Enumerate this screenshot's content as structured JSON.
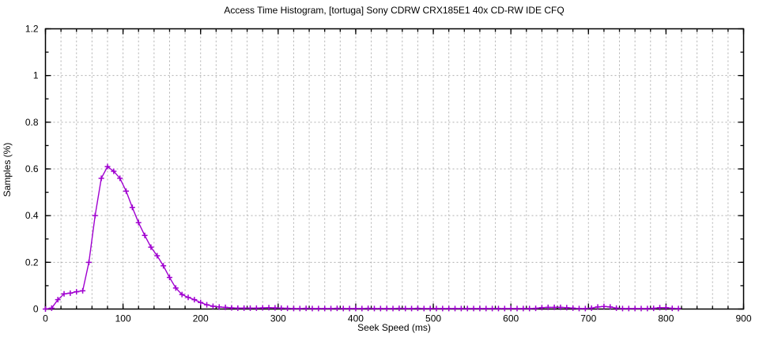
{
  "window": {
    "background_color": "#ffffff"
  },
  "chart_data": {
    "type": "line",
    "title": "Access Time Histogram, [tortuga] Sony CDRW CRX185E1 40x CD-RW IDE CFQ",
    "xlabel": "Seek Speed (ms)",
    "ylabel": "Samples (%)",
    "xlim": [
      0,
      900
    ],
    "ylim": [
      0,
      1.2
    ],
    "grid": "on",
    "grid_style": "dashed",
    "legend_position": "none",
    "grid_color": "#b0b0b0",
    "axis_color": "#000000",
    "xticks": {
      "values": [
        0,
        100,
        200,
        300,
        400,
        500,
        600,
        700,
        800,
        900
      ],
      "labels": [
        "0",
        "100",
        "200",
        "300",
        "400",
        "500",
        "600",
        "700",
        "800",
        "900"
      ],
      "minor_step": 20
    },
    "yticks": {
      "values": [
        0,
        0.2,
        0.4,
        0.6,
        0.8,
        1.0,
        1.2
      ],
      "labels": [
        "0",
        "0.2",
        "0.4",
        "0.6",
        "0.8",
        "1",
        "1.2"
      ],
      "minor_step": 0.1
    },
    "series": [
      {
        "name": "access-time-histogram",
        "color": "#a000d0",
        "marker": "plus",
        "x_start": 0,
        "x_step": 8,
        "x_end": 816,
        "values": [
          0.0,
          0.004,
          0.04,
          0.065,
          0.068,
          0.074,
          0.078,
          0.2,
          0.4,
          0.56,
          0.61,
          0.59,
          0.56,
          0.505,
          0.435,
          0.37,
          0.315,
          0.265,
          0.228,
          0.185,
          0.135,
          0.09,
          0.062,
          0.05,
          0.04,
          0.028,
          0.018,
          0.012,
          0.009,
          0.007,
          0.005,
          0.004,
          0.004,
          0.004,
          0.004,
          0.005,
          0.006,
          0.005,
          0.004,
          0.003,
          0.002,
          0.002,
          0.003,
          0.002,
          0.002,
          0.002,
          0.002,
          0.003,
          0.002,
          0.002,
          0.002,
          0.002,
          0.003,
          0.002,
          0.002,
          0.002,
          0.002,
          0.003,
          0.002,
          0.002,
          0.003,
          0.002,
          0.002,
          0.002,
          0.002,
          0.002,
          0.002,
          0.002,
          0.002,
          0.002,
          0.002,
          0.002,
          0.002,
          0.002,
          0.002,
          0.002,
          0.002,
          0.002,
          0.002,
          0.003,
          0.006,
          0.007,
          0.007,
          0.007,
          0.006,
          0.004,
          0.002,
          0.002,
          0.004,
          0.009,
          0.011,
          0.009,
          0.004,
          0.002,
          0.002,
          0.002,
          0.002,
          0.002,
          0.003,
          0.006,
          0.006,
          0.003,
          0.002
        ]
      }
    ]
  }
}
